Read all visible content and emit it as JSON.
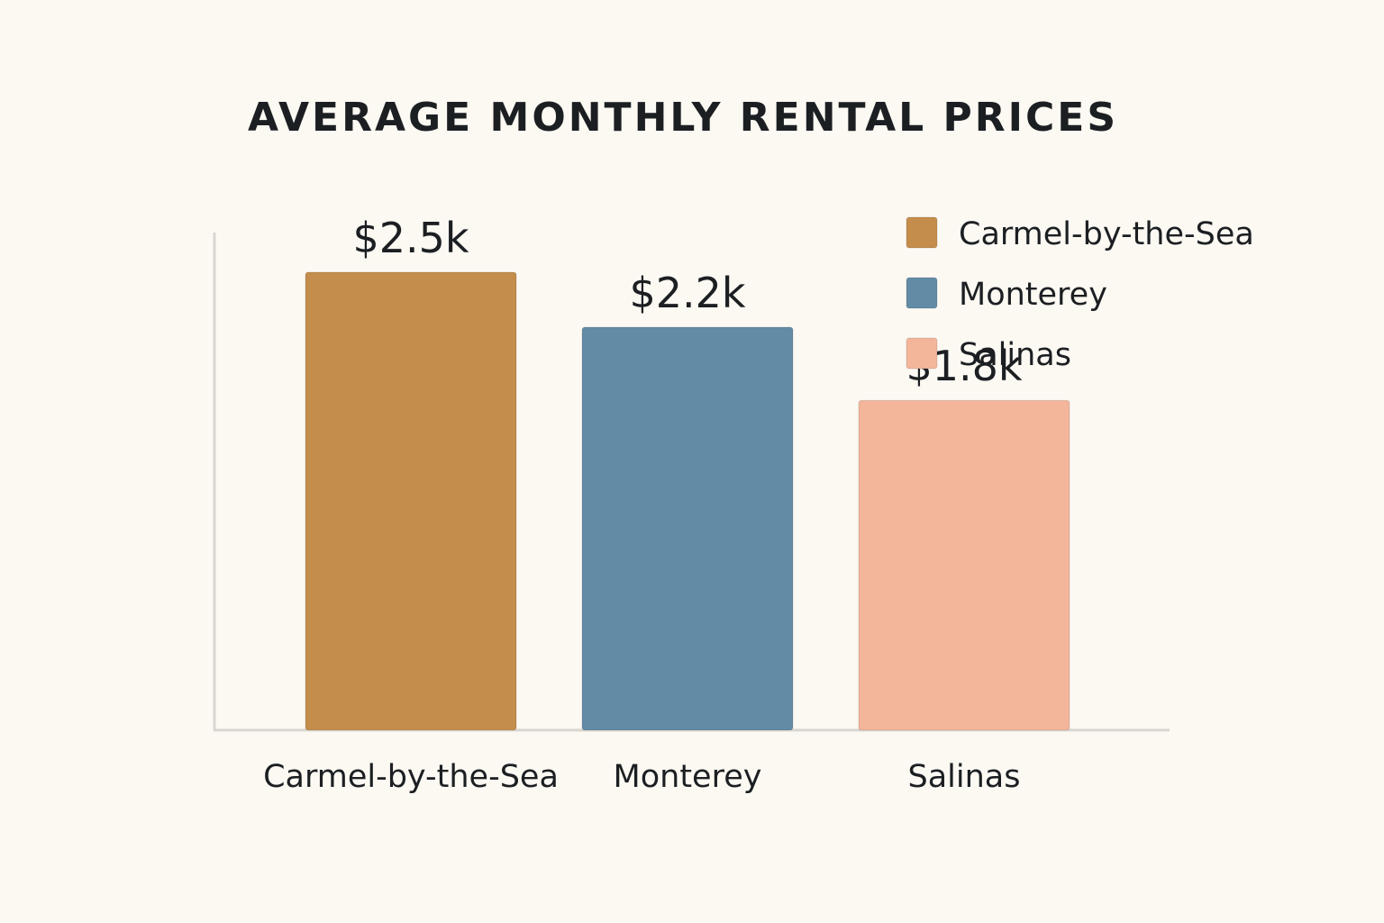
{
  "chart_data": {
    "type": "bar",
    "title": "AVERAGE MONTHLY RENTAL PRICES",
    "xlabel": "",
    "ylabel": "",
    "categories": [
      "Carmel-by-the-Sea",
      "Monterey",
      "Salinas"
    ],
    "values": [
      2.5,
      2.2,
      1.8
    ],
    "value_labels": [
      "$2.5k",
      "$2.2k",
      "$1.8k"
    ],
    "unit": "thousand USD per month",
    "colors": [
      "#c48d4c",
      "#638ba6",
      "#f3b69b"
    ],
    "legend": {
      "position": "top-right",
      "entries": [
        "Carmel-by-the-Sea",
        "Monterey",
        "Salinas"
      ]
    },
    "ylim": [
      0,
      2.5
    ],
    "grid": false
  },
  "style": {
    "background": "#fcf9f3",
    "axis_color": "#d9d6d0",
    "text_color": "#1c1f22"
  }
}
